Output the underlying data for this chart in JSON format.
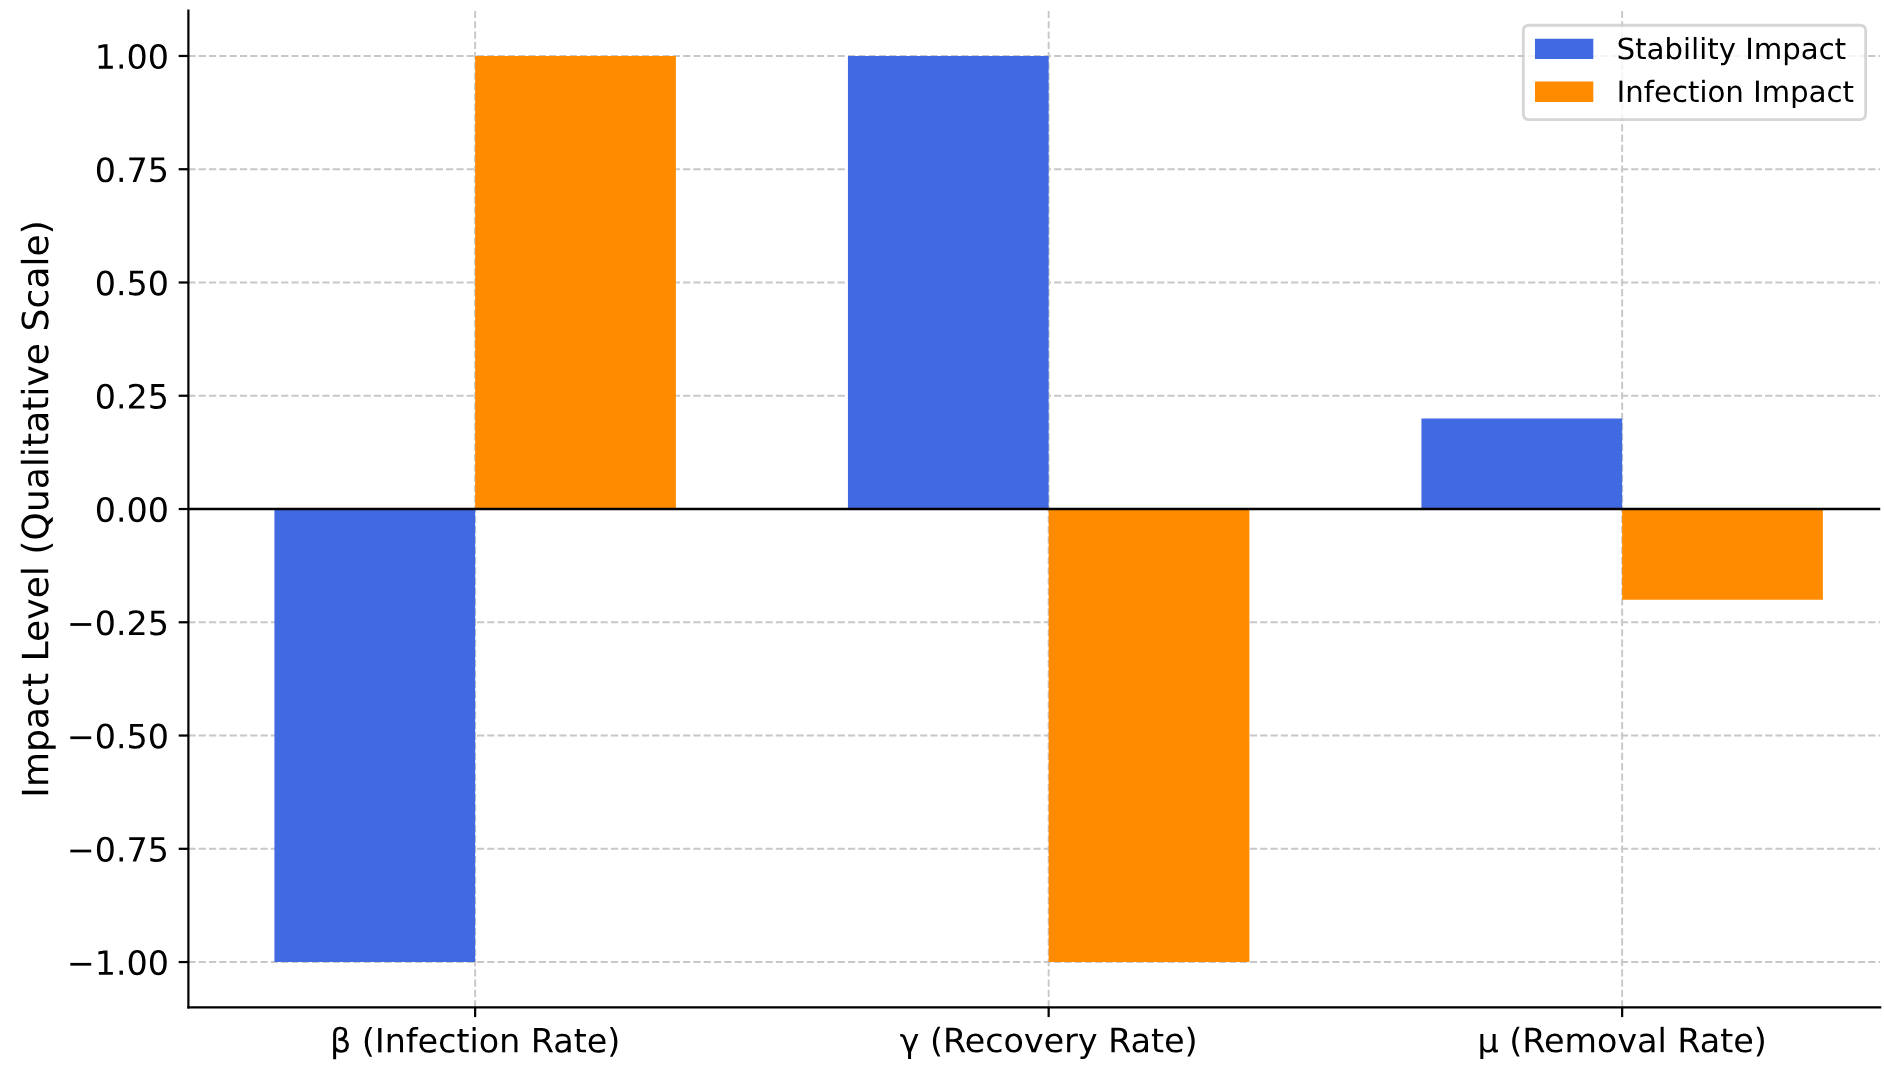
{
  "chart_data": {
    "type": "bar",
    "ylabel": "Impact Level (Qualitative Scale)",
    "categories": [
      "β (Infection Rate)",
      "γ (Recovery Rate)",
      "μ (Removal Rate)"
    ],
    "series": [
      {
        "name": "Stability Impact",
        "color": "#4169e1",
        "values": [
          -1,
          1,
          0.2
        ]
      },
      {
        "name": "Infection Impact",
        "color": "#ff8c00",
        "values": [
          1,
          -1,
          -0.2
        ]
      }
    ],
    "ylim": [
      -1.1,
      1.1
    ],
    "yticks": [
      {
        "value": -1,
        "label": "−1.00"
      },
      {
        "value": -0.75,
        "label": "−0.75"
      },
      {
        "value": -0.5,
        "label": "−0.50"
      },
      {
        "value": -0.25,
        "label": "−0.25"
      },
      {
        "value": 0,
        "label": "0.00"
      },
      {
        "value": 0.25,
        "label": "0.25"
      },
      {
        "value": 0.5,
        "label": "0.50"
      },
      {
        "value": 0.75,
        "label": "0.75"
      },
      {
        "value": 1,
        "label": "1.00"
      }
    ],
    "ref_lines": [
      {
        "axis": "y",
        "value": 0,
        "color": "#000000"
      }
    ],
    "grid": true,
    "legend": "top right",
    "line_style": "dashed"
  }
}
